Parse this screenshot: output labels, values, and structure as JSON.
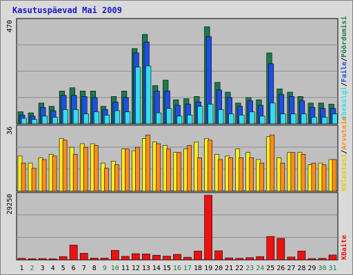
{
  "chart_data": {
    "title": "Kasutuspäevad Mai 2009",
    "x": [
      "1",
      "2",
      "3",
      "4",
      "5",
      "6",
      "7",
      "8",
      "9",
      "10",
      "11",
      "12",
      "13",
      "14",
      "15",
      "16",
      "17",
      "18",
      "19",
      "20",
      "21",
      "22",
      "23",
      "24",
      "25",
      "26",
      "27",
      "28",
      "29",
      "30",
      "31"
    ],
    "x_colors": [
      "#000000",
      "#1a7a4a",
      "#000000",
      "#000000",
      "#000000",
      "#000000",
      "#000000",
      "#000000",
      "#1a7a4a",
      "#1a7a4a",
      "#000000",
      "#000000",
      "#000000",
      "#000000",
      "#000000",
      "#1a7a4a",
      "#1a7a4a",
      "#000000",
      "#000000",
      "#000000",
      "#000000",
      "#000000",
      "#1a7a4a",
      "#1a7a4a",
      "#000000",
      "#000000",
      "#000000",
      "#000000",
      "#000000",
      "#1a7a4a",
      "#1a7a4a"
    ],
    "panels": [
      {
        "type": "bar",
        "ymax_label": "470",
        "ymax": 470,
        "legend": [
          "Pöördumisi",
          "Faile",
          "Lehekülgi"
        ],
        "legend_separators": [
          "/",
          "/"
        ],
        "series": [
          {
            "name": "Pöördumisi",
            "color": "#1a7a4a",
            "values": [
              55,
              50,
              95,
              80,
              150,
              165,
              150,
              150,
              80,
              125,
              150,
              345,
              410,
              175,
              200,
              110,
              115,
              125,
              445,
              190,
              145,
              95,
              120,
              110,
              325,
              160,
              145,
              125,
              95,
              95,
              90
            ]
          },
          {
            "name": "Faile",
            "color": "#1f4fe0",
            "values": [
              40,
              35,
              75,
              60,
              130,
              130,
              125,
              120,
              65,
              100,
              120,
              325,
              375,
              150,
              150,
              85,
              90,
              100,
              400,
              155,
              120,
              80,
              105,
              85,
              275,
              135,
              125,
              105,
              75,
              70,
              70
            ]
          },
          {
            "name": "Lehekülgi",
            "color": "#33ddee",
            "values": [
              25,
              20,
              35,
              30,
              65,
              65,
              45,
              55,
              40,
              60,
              55,
              260,
              265,
              50,
              70,
              35,
              40,
              80,
              90,
              65,
              45,
              40,
              55,
              35,
              95,
              45,
              45,
              45,
              30,
              30,
              45
            ]
          }
        ]
      },
      {
        "type": "bar",
        "ymax_label": "36",
        "ymax": 36,
        "legend": [
          "Arvuteid",
          "Külastusi"
        ],
        "legend_separators": [
          "/"
        ],
        "series": [
          {
            "name": "Külastusi",
            "color": "#ffee22",
            "values": [
              20,
              16,
              19,
              21,
              30,
              25,
              27,
              27,
              16,
              17,
              24,
              23,
              30,
              28,
              26,
              22,
              24,
              28,
              30,
              21,
              20,
              24,
              22,
              18,
              31,
              19,
              22,
              22,
              15,
              16,
              18
            ]
          },
          {
            "name": "Arvuteid",
            "color": "#ff8c1a",
            "values": [
              16,
              13,
              18,
              20,
              29,
              21,
              25,
              26,
              13,
              15,
              24,
              25,
              32,
              27,
              24,
              22,
              26,
              19,
              29,
              18,
              19,
              19,
              19,
              16,
              32,
              16,
              22,
              21,
              16,
              15,
              18
            ]
          }
        ]
      },
      {
        "type": "bar",
        "ymax_label": "29250",
        "ymax": 29250,
        "legend": [
          "KBaite"
        ],
        "legend_separators": [],
        "series": [
          {
            "name": "KBaite",
            "color": "#ee1111",
            "values": [
              700,
              500,
              600,
              500,
              1500,
              6700,
              3000,
              800,
              800,
              4300,
              1600,
              2800,
              2700,
              2100,
              1700,
              2500,
              1200,
              4000,
              29250,
              4100,
              900,
              700,
              1000,
              1500,
              10600,
              9700,
              1300,
              4000,
              600,
              700,
              2200
            ]
          }
        ]
      }
    ]
  }
}
